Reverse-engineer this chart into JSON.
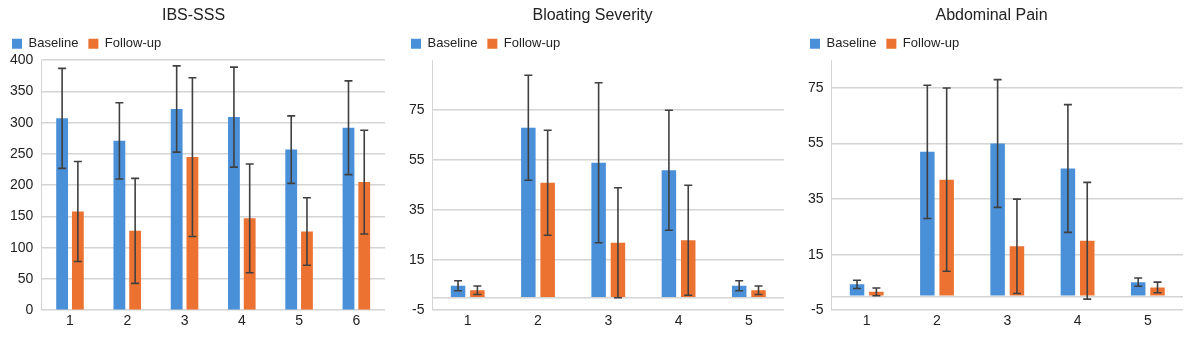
{
  "chart_data": [
    {
      "type": "bar",
      "title": "IBS-SSS",
      "categories": [
        "1",
        "2",
        "3",
        "4",
        "5",
        "6"
      ],
      "legend": "top left",
      "grid": "y",
      "ylim": [
        0,
        400
      ],
      "yticks": [
        0,
        50,
        100,
        150,
        200,
        250,
        300,
        350,
        400
      ],
      "series": [
        {
          "name": "Baseline",
          "color": "#4a90d9",
          "values": [
            307,
            271,
            322,
            309,
            257,
            292
          ],
          "errors": [
            80,
            61,
            69,
            80,
            54,
            75
          ]
        },
        {
          "name": "Follow-up",
          "color": "#ec7232",
          "values": [
            158,
            127,
            245,
            147,
            126,
            205
          ],
          "errors": [
            80,
            84,
            127,
            87,
            54,
            83
          ]
        }
      ]
    },
    {
      "type": "bar",
      "title": "Bloating Severity",
      "categories": [
        "1",
        "2",
        "3",
        "4",
        "5"
      ],
      "legend": "top left",
      "grid": "y",
      "ylim": [
        -5,
        95
      ],
      "yticks": [
        -5,
        {
          "value": 0,
          "label": null
        },
        15,
        35,
        55,
        75
      ],
      "series": [
        {
          "name": "Baseline",
          "color": "#4a90d9",
          "values": [
            4.8,
            68,
            54,
            51,
            4.8
          ],
          "errors": [
            2,
            21,
            32,
            24,
            2
          ]
        },
        {
          "name": "Follow-up",
          "color": "#ec7232",
          "values": [
            3,
            46,
            22,
            23,
            3
          ],
          "errors": [
            1.7,
            21,
            22,
            22,
            1.7
          ]
        }
      ]
    },
    {
      "type": "bar",
      "title": "Abdominal Pain",
      "categories": [
        "1",
        "2",
        "3",
        "4",
        "5"
      ],
      "legend": "top left",
      "grid": "y",
      "ylim": [
        -5,
        85
      ],
      "yticks": [
        -5,
        {
          "value": 0,
          "label": null
        },
        15,
        35,
        55,
        75
      ],
      "series": [
        {
          "name": "Baseline",
          "color": "#4a90d9",
          "values": [
            4.3,
            52,
            55,
            46,
            5.1
          ],
          "errors": [
            1.5,
            24,
            23,
            23,
            1.5
          ]
        },
        {
          "name": "Follow-up",
          "color": "#ec7232",
          "values": [
            1.6,
            42,
            18,
            20,
            3.2
          ],
          "errors": [
            1.4,
            33,
            17,
            21,
            1.9
          ]
        }
      ]
    }
  ]
}
